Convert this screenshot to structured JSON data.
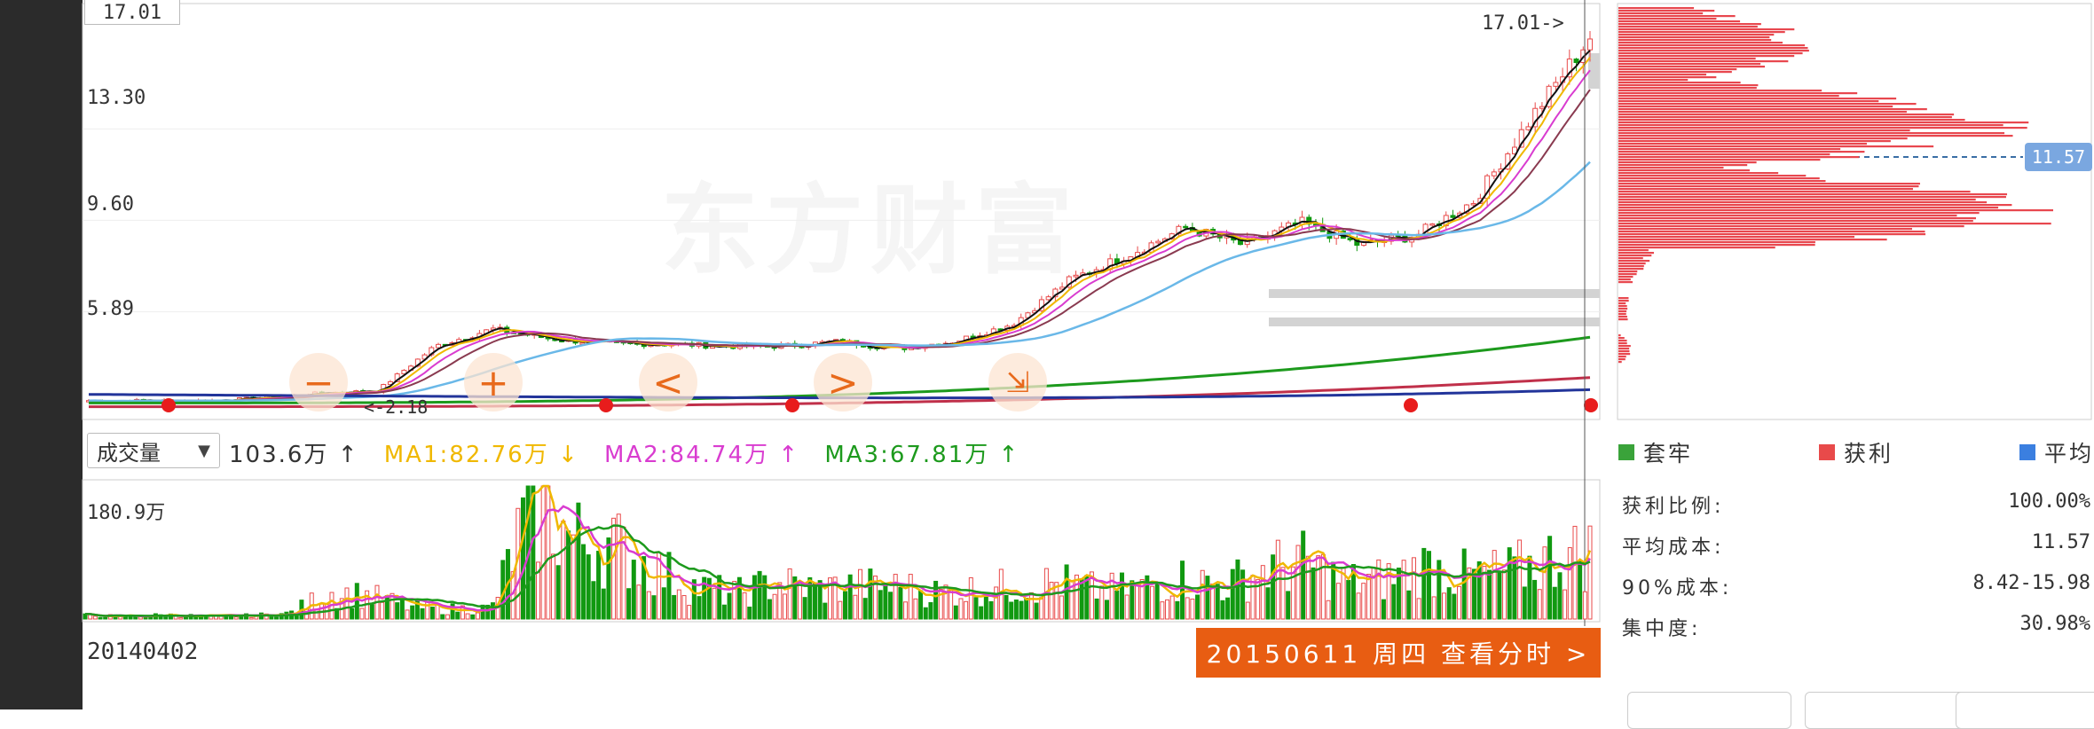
{
  "price_axis": {
    "top_box": "17.01",
    "ticks": [
      "13.30",
      "9.60",
      "5.89"
    ],
    "min_marker": "<-2.18",
    "max_marker": "17.01->"
  },
  "watermark": "东方财富",
  "volume_bar": {
    "selector": "成交量",
    "current": "103.6万 ↑",
    "ma1": "MA1:82.76万 ↓",
    "ma2": "MA2:84.74万 ↑",
    "ma3": "MA3:67.81万 ↑",
    "max_label": "180.9万",
    "start_date": "20140402"
  },
  "action_button": "20150611 周四 查看分时 >",
  "controls": {
    "zoom_out": "−",
    "zoom_in": "+",
    "prev": "<",
    "next": ">",
    "shrink": "⇲"
  },
  "cost_panel": {
    "price_tag": "11.57",
    "legend": [
      {
        "label": "套牢",
        "color": "#3aa33a"
      },
      {
        "label": "获利",
        "color": "#e84a4a"
      },
      {
        "label": "平均",
        "color": "#3b7fe0"
      }
    ],
    "stats": [
      {
        "label": "获利比例:",
        "value": "100.00%"
      },
      {
        "label": "平均成本:",
        "value": "11.57"
      },
      {
        "label": "90%成本:",
        "value": "8.42-15.98"
      },
      {
        "label": "集中度:",
        "value": "30.98%"
      }
    ]
  },
  "colors": {
    "up": "#e84a4a",
    "down": "#119911",
    "ma1": "#f0b800",
    "ma2": "#d93cd0",
    "ma3": "#1d9a1d",
    "accent": "#e85d12"
  },
  "chart_data": [
    {
      "type": "line",
      "title": "",
      "ylim": [
        2.18,
        17.01
      ],
      "yticks": [
        13.3,
        9.6,
        5.89
      ],
      "series": [
        {
          "values": [
            2.3,
            2.3,
            2.3,
            2.4,
            2.6,
            2.7,
            4.5,
            5.2,
            4.8,
            4.6,
            4.6,
            4.5,
            4.5,
            4.7,
            4.4,
            4.7,
            5.4,
            7.2,
            8.2,
            9.3,
            8.6,
            9.5,
            8.6,
            9.0,
            10.4,
            13.8,
            17.01
          ]
        }
      ]
    },
    {
      "type": "bar",
      "title": "",
      "ylim": [
        0,
        180.9
      ],
      "values": [
        5,
        4,
        6,
        4,
        5,
        8,
        40,
        35,
        18,
        15,
        16,
        180,
        120,
        110,
        75,
        48,
        38,
        55,
        45,
        50,
        48,
        40,
        45,
        50,
        55,
        42,
        48,
        60,
        50,
        75,
        85,
        55,
        60,
        80,
        65,
        70,
        90,
        100
      ]
    }
  ]
}
